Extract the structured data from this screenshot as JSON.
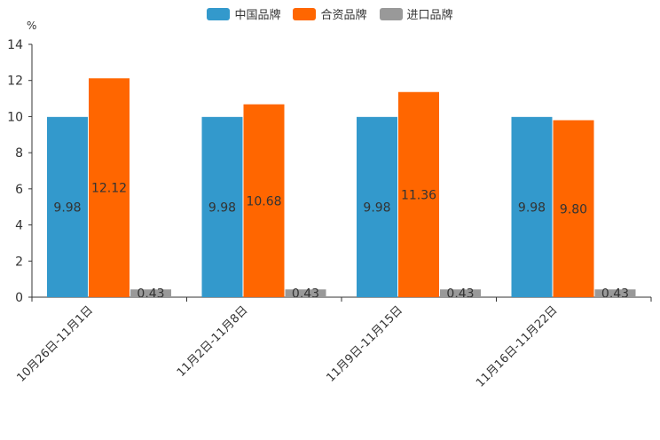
{
  "chart_data": {
    "type": "bar",
    "unit": "%",
    "categories": [
      "10月26日-11月1日",
      "11月2日-11月8日",
      "11月9日-11月15日",
      "11月16日-11月22日"
    ],
    "series": [
      {
        "name": "中国品牌",
        "color": "#3399cc",
        "values": [
          9.98,
          9.98,
          9.98,
          9.98
        ],
        "labels": [
          "9.98",
          "9.98",
          "9.98",
          "9.98"
        ]
      },
      {
        "name": "合资品牌",
        "color": "#ff6600",
        "values": [
          12.12,
          10.68,
          11.36,
          9.8
        ],
        "labels": [
          "12.12",
          "10.68",
          "11.36",
          "9.80"
        ]
      },
      {
        "name": "进口品牌",
        "color": "#999999",
        "values": [
          0.43,
          0.43,
          0.43,
          0.43
        ],
        "labels": [
          "0.43",
          "0.43",
          "0.43",
          "0.43"
        ]
      }
    ],
    "ylim": [
      0,
      14
    ],
    "yticks": [
      "0",
      "2",
      "4",
      "6",
      "8",
      "10",
      "12",
      "14"
    ],
    "legend_position": "top-center",
    "grid": false
  }
}
